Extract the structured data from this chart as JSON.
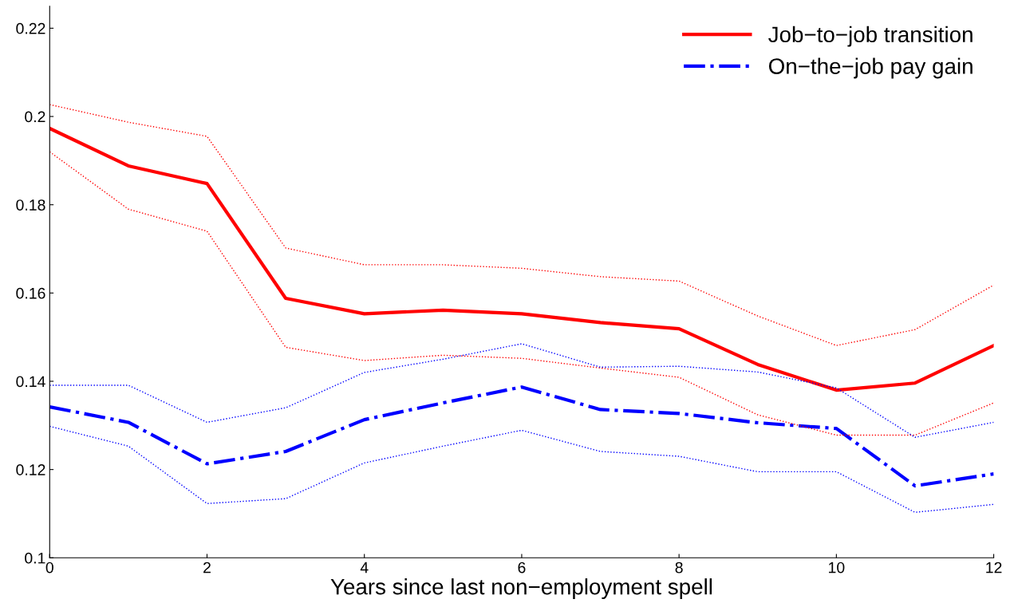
{
  "chart_data": {
    "type": "line",
    "xlabel": "Years since last non−employment spell",
    "x": [
      0,
      1,
      2,
      3,
      4,
      5,
      6,
      7,
      8,
      9,
      10,
      11,
      12
    ],
    "series": [
      {
        "name": "Job−to−job transition",
        "color": "#ff0000",
        "line_style": "solid",
        "values": [
          0.1973,
          0.1888,
          0.1848,
          0.1588,
          0.1553,
          0.1561,
          0.1553,
          0.1533,
          0.1519,
          0.1438,
          0.138,
          0.1396,
          0.1481
        ]
      },
      {
        "name": "On−the−job pay gain",
        "color": "#0000ff",
        "line_style": "dashdot",
        "values": [
          0.1342,
          0.1307,
          0.1213,
          0.1241,
          0.1313,
          0.1351,
          0.1387,
          0.1336,
          0.1327,
          0.1306,
          0.1293,
          0.1163,
          0.119
        ]
      },
      {
        "color": "#ff0000",
        "line_style": "dotted",
        "values": [
          0.2027,
          0.1987,
          0.1955,
          0.1702,
          0.1664,
          0.1664,
          0.1656,
          0.1637,
          0.1627,
          0.1548,
          0.1481,
          0.1517,
          0.1618
        ]
      },
      {
        "color": "#ff0000",
        "line_style": "dotted",
        "values": [
          0.192,
          0.179,
          0.174,
          0.1477,
          0.1447,
          0.1459,
          0.1452,
          0.143,
          0.1409,
          0.1324,
          0.1278,
          0.1278,
          0.1351
        ]
      },
      {
        "color": "#0000ff",
        "line_style": "dotted",
        "values": [
          0.1391,
          0.1391,
          0.1307,
          0.134,
          0.142,
          0.145,
          0.1485,
          0.1432,
          0.1434,
          0.1421,
          0.1385,
          0.1273,
          0.1307
        ]
      },
      {
        "color": "#0000ff",
        "line_style": "dotted",
        "values": [
          0.1298,
          0.1253,
          0.1123,
          0.1134,
          0.1215,
          0.1253,
          0.1289,
          0.1241,
          0.123,
          0.1195,
          0.1195,
          0.1103,
          0.1121
        ]
      }
    ],
    "xlim": [
      0,
      12
    ],
    "xticks": [
      0,
      2,
      4,
      6,
      8,
      10,
      12
    ],
    "ylim": [
      0.1,
      0.225
    ],
    "yticks": [
      0.1,
      0.12,
      0.14,
      0.16,
      0.18,
      0.2,
      0.22
    ],
    "grid": false,
    "legend": "top right",
    "marker": "none"
  }
}
